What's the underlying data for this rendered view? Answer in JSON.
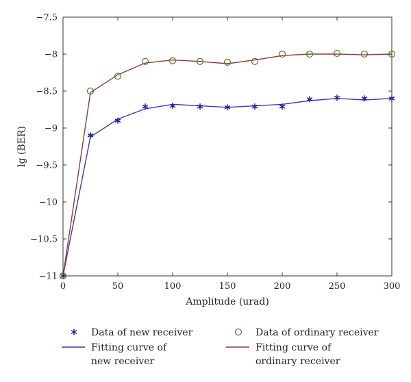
{
  "chart_data": {
    "type": "line",
    "xlabel": "Amplitude (urad)",
    "ylabel": "lg (BER)",
    "xlim": [
      0,
      300
    ],
    "ylim": [
      -11,
      -7.5
    ],
    "xticks": [
      0,
      50,
      100,
      150,
      200,
      250,
      300
    ],
    "xtick_labels": [
      "0",
      "50",
      "100",
      "150",
      "200",
      "250",
      "300"
    ],
    "yticks": [
      -11,
      -10.5,
      -10,
      -9.5,
      -9,
      -8.5,
      -8,
      -7.5
    ],
    "ytick_labels": [
      "−11",
      "−10.5",
      "−10",
      "−9.5",
      "−9",
      "−8.5",
      "−8",
      "−7.5"
    ],
    "grid": false,
    "legend_position": "bottom",
    "series": [
      {
        "name": "Data of new receiver",
        "kind": "scatter",
        "marker": "asterisk",
        "color": "#1f1f9a",
        "x": [
          0,
          25,
          50,
          75,
          100,
          125,
          150,
          175,
          200,
          225,
          250,
          275,
          300
        ],
        "y": [
          -11,
          -9.1,
          -8.9,
          -8.71,
          -8.7,
          -8.71,
          -8.72,
          -8.71,
          -8.71,
          -8.61,
          -8.59,
          -8.6,
          -8.6
        ]
      },
      {
        "name": "Data of ordinary receiver",
        "kind": "scatter",
        "marker": "circle",
        "color": "#4a7a2a",
        "x": [
          0,
          25,
          50,
          75,
          100,
          125,
          150,
          175,
          200,
          225,
          250,
          275,
          300
        ],
        "y": [
          -11,
          -8.5,
          -8.3,
          -8.1,
          -8.09,
          -8.1,
          -8.11,
          -8.1,
          -8.0,
          -8.0,
          -7.99,
          -8.0,
          -8.0
        ]
      },
      {
        "name": "Fitting curve of new receiver",
        "name_lines": [
          "Fitting curve of",
          "new receiver"
        ],
        "kind": "line",
        "color": "#3a3ab0",
        "x": [
          0,
          25,
          50,
          75,
          100,
          125,
          150,
          175,
          200,
          225,
          250,
          275,
          300
        ],
        "y": [
          -11,
          -9.12,
          -8.88,
          -8.74,
          -8.68,
          -8.7,
          -8.72,
          -8.7,
          -8.68,
          -8.63,
          -8.6,
          -8.62,
          -8.6
        ]
      },
      {
        "name": "Fitting curve of ordinary receiver",
        "name_lines": [
          "Fitting curve of",
          "ordinary receiver"
        ],
        "kind": "line",
        "color": "#8a3a3a",
        "x": [
          0,
          25,
          50,
          75,
          100,
          125,
          150,
          175,
          200,
          225,
          250,
          275,
          300
        ],
        "y": [
          -11,
          -8.52,
          -8.28,
          -8.12,
          -8.08,
          -8.1,
          -8.13,
          -8.08,
          -8.02,
          -8.0,
          -8.0,
          -8.01,
          -8.0
        ]
      }
    ]
  }
}
